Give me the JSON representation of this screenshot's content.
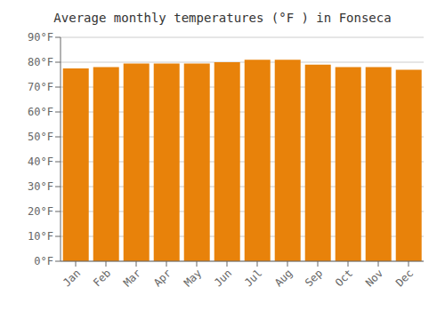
{
  "chart_data": {
    "type": "bar",
    "title": "Average monthly temperatures (°F ) in Fonseca",
    "categories": [
      "Jan",
      "Feb",
      "Mar",
      "Apr",
      "May",
      "Jun",
      "Jul",
      "Aug",
      "Sep",
      "Oct",
      "Nov",
      "Dec"
    ],
    "values": [
      77.5,
      78.0,
      79.5,
      79.5,
      79.5,
      80.0,
      81.0,
      81.0,
      79.0,
      78.0,
      78.0,
      77.0
    ],
    "color": "#E8820A",
    "ylim": [
      0,
      90
    ],
    "yticks": [
      {
        "value": 0,
        "label": "0°F"
      },
      {
        "value": 10,
        "label": "10°F"
      },
      {
        "value": 20,
        "label": "20°F"
      },
      {
        "value": 30,
        "label": "30°F"
      },
      {
        "value": 40,
        "label": "40°F"
      },
      {
        "value": 50,
        "label": "50°F"
      },
      {
        "value": 60,
        "label": "60°F"
      },
      {
        "value": 70,
        "label": "70°F"
      },
      {
        "value": 80,
        "label": "80°F"
      },
      {
        "value": 90,
        "label": "90°F"
      }
    ],
    "grid": true
  }
}
